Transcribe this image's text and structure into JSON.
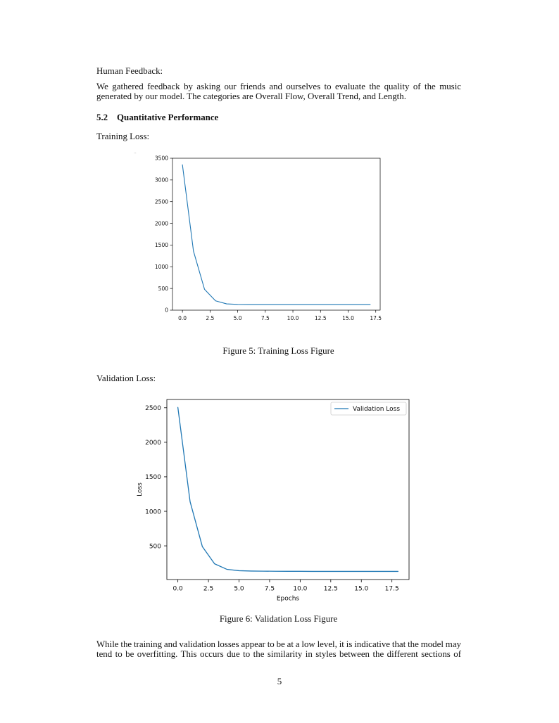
{
  "page": {
    "human_feedback_label": "Human Feedback:",
    "feedback_paragraph": [
      "We gathered feedback by asking our friends and ourselves to evaluate the quality of the music",
      "generated by our model. The categories are Overall Flow, Overall Trend, and Length."
    ],
    "section": {
      "number": "5.2",
      "title": "Quantitative Performance"
    },
    "training_loss_label": "Training Loss:",
    "corner_mark": "..",
    "figure5_caption": "Figure 5: Training Loss Figure",
    "validation_loss_label": "Validation Loss:",
    "figure6_caption": "Figure 6: Validation Loss Figure",
    "discussion_paragraph": [
      "While the training and validation losses appear to be at a low level, it is indicative that the model may",
      "tend to be overfitting. This occurs due to the similarity in styles between the different sections of"
    ],
    "page_number": "5"
  },
  "chart_data": [
    {
      "type": "line",
      "xlim": [
        -0.9,
        17.9
      ],
      "ylim": [
        0,
        3500
      ],
      "xticks": [
        0,
        2.5,
        5,
        7.5,
        10,
        12.5,
        15,
        17.5
      ],
      "xtick_labels": [
        "0.0",
        "2.5",
        "5.0",
        "7.5",
        "10.0",
        "12.5",
        "15.0",
        "17.5"
      ],
      "yticks": [
        0,
        500,
        1000,
        1500,
        2000,
        2500,
        3000,
        3500
      ],
      "ytick_labels": [
        "0",
        "500",
        "1000",
        "1500",
        "2000",
        "2500",
        "3000",
        "3500"
      ],
      "grid": false,
      "legend": null,
      "series": [
        {
          "color": "#1f77b4",
          "x": [
            0,
            1,
            2,
            3,
            4,
            5,
            6,
            7,
            8,
            9,
            10,
            11,
            12,
            13,
            14,
            15,
            16,
            17
          ],
          "values": [
            3350,
            1360,
            480,
            215,
            145,
            133,
            131,
            130,
            130,
            130,
            130,
            130,
            130,
            130,
            130,
            130,
            130,
            130
          ]
        }
      ]
    },
    {
      "type": "line",
      "xlabel": "Epochs",
      "ylabel": "Loss",
      "xlim": [
        -0.9,
        18.9
      ],
      "ylim": [
        12,
        2620
      ],
      "xticks": [
        0,
        2.5,
        5,
        7.5,
        10,
        12.5,
        15,
        17.5
      ],
      "xtick_labels": [
        "0.0",
        "2.5",
        "5.0",
        "7.5",
        "10.0",
        "12.5",
        "15.0",
        "17.5"
      ],
      "yticks": [
        500,
        1000,
        1500,
        2000,
        2500
      ],
      "ytick_labels": [
        "500",
        "1000",
        "1500",
        "2000",
        "2500"
      ],
      "grid": false,
      "legend": "top-right",
      "series": [
        {
          "name": "Validation Loss",
          "color": "#1f77b4",
          "x": [
            0,
            1,
            2,
            3,
            4,
            5,
            6,
            7,
            8,
            9,
            10,
            11,
            12,
            13,
            14,
            15,
            16,
            17,
            18
          ],
          "values": [
            2505,
            1140,
            490,
            240,
            160,
            140,
            135,
            133,
            132,
            131,
            131,
            130,
            130,
            130,
            130,
            130,
            130,
            130,
            130
          ]
        }
      ]
    }
  ]
}
